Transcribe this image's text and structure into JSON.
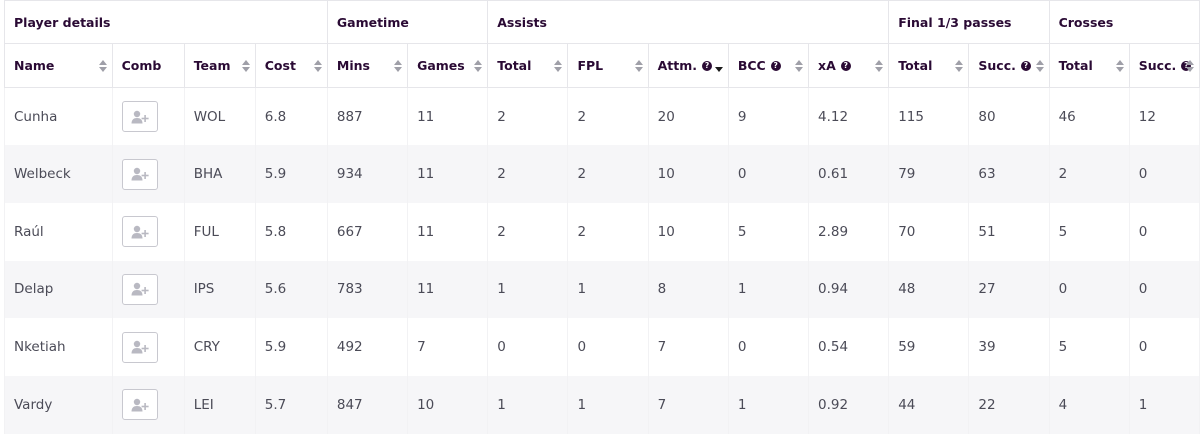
{
  "groups": [
    {
      "label": "Player details",
      "span": 4
    },
    {
      "label": "Gametime",
      "span": 2
    },
    {
      "label": "Assists",
      "span": 5
    },
    {
      "label": "Final 1/3 passes",
      "span": 2
    },
    {
      "label": "Crosses",
      "span": 2
    }
  ],
  "columns": [
    {
      "label": "Name",
      "sort": "both",
      "help": false
    },
    {
      "label": "Comb",
      "sort": "none",
      "help": false
    },
    {
      "label": "Team",
      "sort": "both",
      "help": false
    },
    {
      "label": "Cost",
      "sort": "both",
      "help": false
    },
    {
      "label": "Mins",
      "sort": "both",
      "help": false
    },
    {
      "label": "Games",
      "sort": "both",
      "help": false
    },
    {
      "label": "Total",
      "sort": "both",
      "help": false
    },
    {
      "label": "FPL",
      "sort": "both",
      "help": false
    },
    {
      "label": "Attm.",
      "sort": "desc",
      "help": true
    },
    {
      "label": "BCC",
      "sort": "both",
      "help": true
    },
    {
      "label": "xA",
      "sort": "both",
      "help": true
    },
    {
      "label": "Total",
      "sort": "both",
      "help": false
    },
    {
      "label": "Succ.",
      "sort": "both",
      "help": true
    },
    {
      "label": "Total",
      "sort": "both",
      "help": false
    },
    {
      "label": "Succ.",
      "sort": "both",
      "help": true
    }
  ],
  "help_glyph": "?",
  "rows": [
    {
      "name": "Cunha",
      "team": "WOL",
      "cost": "6.8",
      "mins": "887",
      "games": "11",
      "assists_total": "2",
      "fpl": "2",
      "attm": "20",
      "bcc": "9",
      "xa": "4.12",
      "f3_total": "115",
      "f3_succ": "80",
      "cross_total": "46",
      "cross_succ": "12"
    },
    {
      "name": "Welbeck",
      "team": "BHA",
      "cost": "5.9",
      "mins": "934",
      "games": "11",
      "assists_total": "2",
      "fpl": "2",
      "attm": "10",
      "bcc": "0",
      "xa": "0.61",
      "f3_total": "79",
      "f3_succ": "63",
      "cross_total": "2",
      "cross_succ": "0"
    },
    {
      "name": "Raúl",
      "team": "FUL",
      "cost": "5.8",
      "mins": "667",
      "games": "11",
      "assists_total": "2",
      "fpl": "2",
      "attm": "10",
      "bcc": "5",
      "xa": "2.89",
      "f3_total": "70",
      "f3_succ": "51",
      "cross_total": "5",
      "cross_succ": "0"
    },
    {
      "name": "Delap",
      "team": "IPS",
      "cost": "5.6",
      "mins": "783",
      "games": "11",
      "assists_total": "1",
      "fpl": "1",
      "attm": "8",
      "bcc": "1",
      "xa": "0.94",
      "f3_total": "48",
      "f3_succ": "27",
      "cross_total": "0",
      "cross_succ": "0"
    },
    {
      "name": "Nketiah",
      "team": "CRY",
      "cost": "5.9",
      "mins": "492",
      "games": "7",
      "assists_total": "0",
      "fpl": "0",
      "attm": "7",
      "bcc": "0",
      "xa": "0.54",
      "f3_total": "59",
      "f3_succ": "39",
      "cross_total": "5",
      "cross_succ": "0"
    },
    {
      "name": "Vardy",
      "team": "LEI",
      "cost": "5.7",
      "mins": "847",
      "games": "10",
      "assists_total": "1",
      "fpl": "1",
      "attm": "7",
      "bcc": "1",
      "xa": "0.92",
      "f3_total": "44",
      "f3_succ": "22",
      "cross_total": "4",
      "cross_succ": "1"
    }
  ],
  "comb_icon": "add-user-icon",
  "colors": {
    "text_header": "#2a0a34",
    "text_cell": "#4b4b57",
    "stripe": "#f6f6f8",
    "border": "#e6e6ea"
  }
}
